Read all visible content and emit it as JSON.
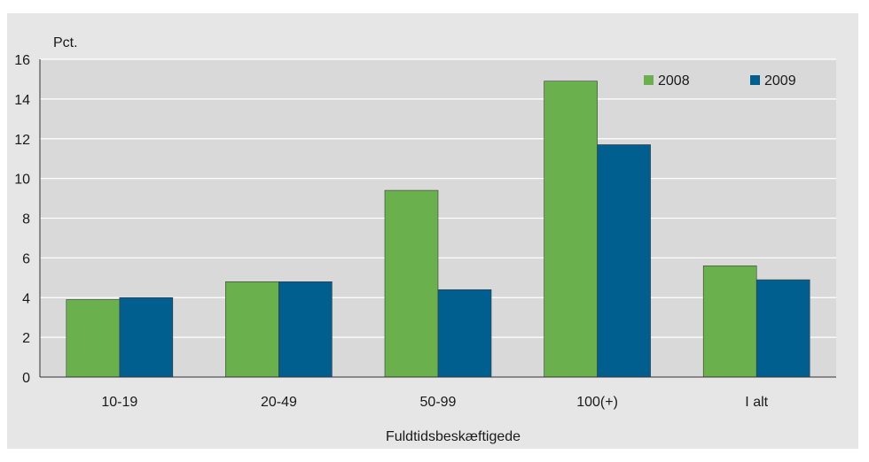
{
  "chart_data": {
    "type": "bar",
    "ylabel": "Pct.",
    "xlabel": "Fuldtidsbeskæftigede",
    "categories": [
      "10-19",
      "20-49",
      "50-99",
      "100(+)",
      "I alt"
    ],
    "series": [
      {
        "name": "2008",
        "color": "#6ab04c",
        "values": [
          3.9,
          4.8,
          9.4,
          14.9,
          5.6
        ]
      },
      {
        "name": "2009",
        "color": "#005f8f",
        "values": [
          4.0,
          4.8,
          4.4,
          11.7,
          4.9
        ]
      }
    ],
    "ylim": [
      0,
      16
    ],
    "yticks": [
      0,
      2,
      4,
      6,
      8,
      10,
      12,
      14,
      16
    ],
    "grid": true,
    "legend_position": "top-right"
  }
}
